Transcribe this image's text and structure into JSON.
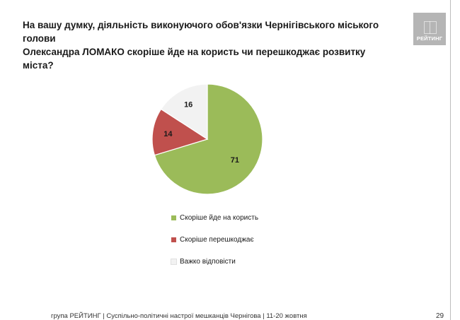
{
  "header": {
    "title_line1": "На вашу думку,  діяльність виконуючого обов'язки Чернігівського міського голови",
    "title_line2": "Олександра ЛОМАКО скоріше йде на користь чи перешкоджає розвитку міста?"
  },
  "logo": {
    "text": "РЕЙТИНГ"
  },
  "chart_data": {
    "type": "pie",
    "slices": [
      {
        "label": "Скоріше йде на користь",
        "value": 71,
        "color": "#9bbb59"
      },
      {
        "label": "Скоріше перешкоджає",
        "value": 14,
        "color": "#c0504d"
      },
      {
        "label": "Важко відповісти",
        "value": 16,
        "color": "#f2f2f2"
      }
    ],
    "start_angle_deg": 0,
    "direction": "clockwise",
    "legend_position": "bottom"
  },
  "footer": {
    "text": "група РЕЙТИНГ  | Суспільно-політичні настрої мешканців Чернігова | 11-20 жовтня",
    "page_number": "29"
  }
}
